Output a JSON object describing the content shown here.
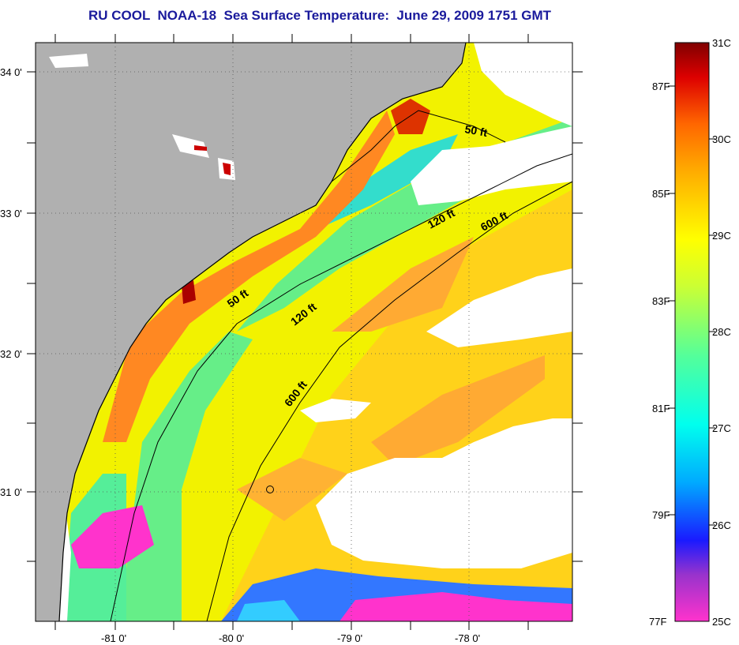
{
  "title": "RU COOL  NOAA-18  Sea Surface Temperature:  June 29, 2009 1751 GMT",
  "lat_labels": [
    "34 0'",
    "33 0'",
    "32 0'",
    "31 0'"
  ],
  "lon_labels": [
    "-81 0'",
    "-80 0'",
    "-79 0'",
    "-78 0'"
  ],
  "contour_labels": {
    "inner_50": "50 ft",
    "inner_120": "120 ft",
    "inner_600": "600 ft",
    "outer_50": "50 ft",
    "outer_120": "120 ft",
    "outer_600": "600 ft"
  },
  "colorbar": {
    "celsius": [
      "31C",
      "30C",
      "29C",
      "28C",
      "27C",
      "26C",
      "25C"
    ],
    "fahrenheit": [
      "87F",
      "85F",
      "83F",
      "81F",
      "79F",
      "77F"
    ]
  },
  "colors": {
    "land": "#b0b0b0",
    "cloud": "#ffffff",
    "title": "#1a1a9c",
    "colorscale": [
      "#ff33cc",
      "#9933cc",
      "#1a1aff",
      "#00ccff",
      "#33ffaa",
      "#aaff33",
      "#ffff00",
      "#ffaa00",
      "#ff5500",
      "#cc0000",
      "#800000"
    ]
  }
}
